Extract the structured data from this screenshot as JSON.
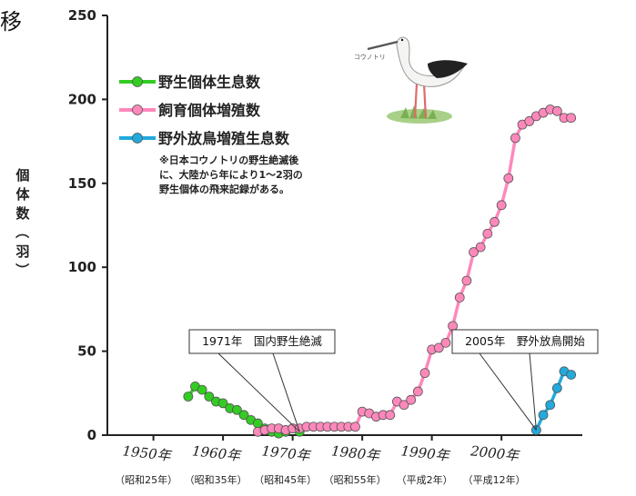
{
  "title_fragment": "移",
  "colors": {
    "wild": "#33cc22",
    "captive": "#ff88bb",
    "released": "#22aadd",
    "axis": "#222222"
  },
  "stork_illustration": {
    "caption": "コウノトリ"
  },
  "chart_data": {
    "type": "line",
    "title": "",
    "ylabel": "個体数（羽）",
    "ylim": [
      0,
      250
    ],
    "yticks": [
      0,
      50,
      100,
      150,
      200,
      250
    ],
    "xlim": [
      1946,
      2009
    ],
    "xticks": [
      {
        "year": 1950,
        "label": "1950年",
        "era": "（昭和25年）"
      },
      {
        "year": 1960,
        "label": "1960年",
        "era": "（昭和35年）"
      },
      {
        "year": 1970,
        "label": "1970年",
        "era": "（昭和45年）"
      },
      {
        "year": 1980,
        "label": "1980年",
        "era": "（昭和55年）"
      },
      {
        "year": 1990,
        "label": "1990年",
        "era": "（平成2年）"
      },
      {
        "year": 2000,
        "label": "2000年",
        "era": "（平成12年）"
      }
    ],
    "legend_position": "top-left",
    "series": [
      {
        "name": "野生個体生息数",
        "color": "#33cc22",
        "points": [
          [
            1955,
            23
          ],
          [
            1956,
            29
          ],
          [
            1957,
            27
          ],
          [
            1958,
            23
          ],
          [
            1959,
            20
          ],
          [
            1960,
            19
          ],
          [
            1961,
            16
          ],
          [
            1962,
            15
          ],
          [
            1963,
            12
          ],
          [
            1964,
            9
          ],
          [
            1965,
            7
          ],
          [
            1966,
            4
          ],
          [
            1967,
            2
          ],
          [
            1968,
            1
          ],
          [
            1969,
            2
          ],
          [
            1970,
            4
          ],
          [
            1971,
            2
          ]
        ]
      },
      {
        "name": "飼育個体増殖数",
        "color": "#ff88bb",
        "points": [
          [
            1965,
            2
          ],
          [
            1966,
            3
          ],
          [
            1967,
            4
          ],
          [
            1968,
            4
          ],
          [
            1969,
            3
          ],
          [
            1970,
            4
          ],
          [
            1971,
            4
          ],
          [
            1972,
            5
          ],
          [
            1973,
            5
          ],
          [
            1974,
            5
          ],
          [
            1975,
            5
          ],
          [
            1976,
            5
          ],
          [
            1977,
            5
          ],
          [
            1978,
            5
          ],
          [
            1979,
            5
          ],
          [
            1980,
            14
          ],
          [
            1981,
            13
          ],
          [
            1982,
            11
          ],
          [
            1983,
            12
          ],
          [
            1984,
            12
          ],
          [
            1985,
            20
          ],
          [
            1986,
            18
          ],
          [
            1987,
            21
          ],
          [
            1988,
            26
          ],
          [
            1989,
            37
          ],
          [
            1990,
            51
          ],
          [
            1991,
            52
          ],
          [
            1992,
            55
          ],
          [
            1993,
            65
          ],
          [
            1994,
            82
          ],
          [
            1995,
            92
          ],
          [
            1996,
            109
          ],
          [
            1997,
            112
          ],
          [
            1998,
            120
          ],
          [
            1999,
            127
          ],
          [
            2000,
            137
          ],
          [
            2001,
            153
          ],
          [
            2002,
            177
          ],
          [
            2003,
            185
          ],
          [
            2004,
            187
          ],
          [
            2005,
            190
          ],
          [
            2006,
            192
          ],
          [
            2007,
            194
          ],
          [
            2008,
            193
          ],
          [
            2009,
            189
          ],
          [
            2010,
            189
          ]
        ]
      },
      {
        "name": "野外放鳥増殖生息数",
        "color": "#22aadd",
        "points": [
          [
            2005,
            3
          ],
          [
            2006,
            12
          ],
          [
            2007,
            18
          ],
          [
            2008,
            28
          ],
          [
            2009,
            38
          ],
          [
            2010,
            36
          ]
        ]
      }
    ],
    "legend_note": [
      "※日本コウノトリの野生絶滅後",
      "に、大陸から年により1～2羽の",
      "野生個体の飛来記録がある。"
    ],
    "annotations": [
      {
        "text": "1971年　国内野生絶滅",
        "year": 1971,
        "value": 2
      },
      {
        "text": "2005年　野外放鳥開始",
        "year": 2005,
        "value": 3
      }
    ]
  }
}
